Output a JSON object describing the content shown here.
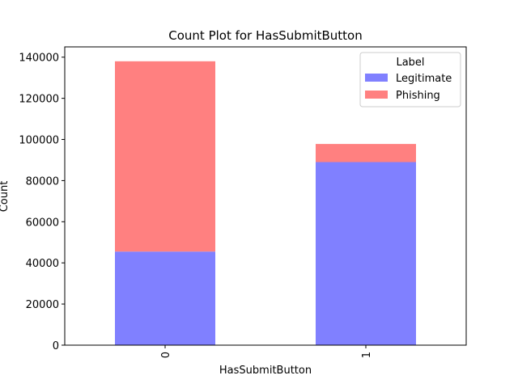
{
  "chart_data": {
    "type": "bar",
    "stacked": true,
    "title": "Count Plot for HasSubmitButton",
    "xlabel": "HasSubmitButton",
    "ylabel": "Count",
    "categories": [
      "0",
      "1"
    ],
    "series": [
      {
        "name": "Legitimate",
        "color": "#8080ff",
        "values": [
          45500,
          89000
        ]
      },
      {
        "name": "Phishing",
        "color": "#ff8080",
        "values": [
          92500,
          8800
        ]
      }
    ],
    "ylim": [
      0,
      145000
    ],
    "yticks": [
      0,
      20000,
      40000,
      60000,
      80000,
      100000,
      120000,
      140000
    ],
    "ytick_labels": [
      "0",
      "20000",
      "40000",
      "60000",
      "80000",
      "100000",
      "120000",
      "140000"
    ],
    "legend": {
      "title": "Label",
      "position": "top-right"
    },
    "grid": false
  }
}
